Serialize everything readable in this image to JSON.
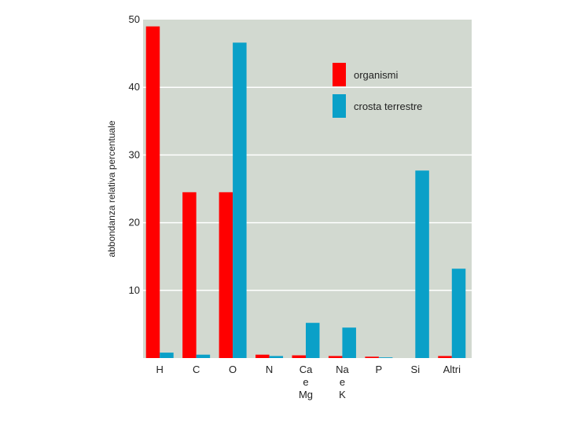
{
  "chart_data": {
    "type": "bar",
    "categories": [
      [
        "H"
      ],
      [
        "C"
      ],
      [
        "O"
      ],
      [
        "N"
      ],
      [
        "Ca",
        "e",
        "Mg"
      ],
      [
        "Na",
        "e",
        "K"
      ],
      [
        "P"
      ],
      [
        "Si"
      ],
      [
        "Altri"
      ]
    ],
    "series": [
      {
        "name": "organismi",
        "color": "#ff0000",
        "values": [
          49,
          24.5,
          24.5,
          0.5,
          0.4,
          0.3,
          0.2,
          0,
          0.3
        ]
      },
      {
        "name": "crosta terrestre",
        "color": "#0aa0c8",
        "values": [
          0.8,
          0.5,
          46.6,
          0.3,
          5.2,
          4.5,
          0.1,
          27.7,
          13.2
        ]
      }
    ],
    "title": "",
    "xlabel": "",
    "ylabel": "abbondanza relativa percentuale",
    "ylim": [
      0,
      50
    ],
    "yticks": [
      10,
      20,
      30,
      40,
      50
    ],
    "grid": true,
    "legend_position": "top-right",
    "background_color": "#d2d9d0",
    "grid_color": "#ffffff"
  }
}
